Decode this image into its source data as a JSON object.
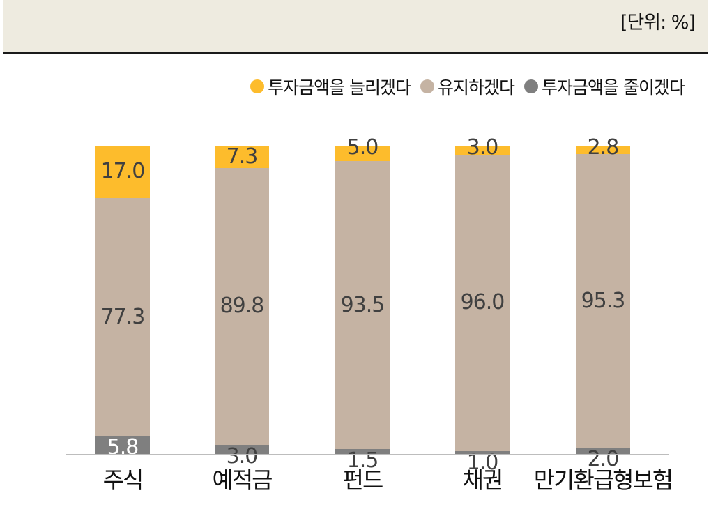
{
  "unit_label": "[단위: %]",
  "colors": {
    "increase": "#fdbc2c",
    "maintain": "#c5b3a3",
    "decrease": "#7f7f7f",
    "header_bg": "#eeebe0"
  },
  "legend": [
    {
      "label": "투자금액을 늘리겠다",
      "color": "#fdbc2c"
    },
    {
      "label": "유지하겠다",
      "color": "#c5b3a3"
    },
    {
      "label": "투자금액을 줄이겠다",
      "color": "#7f7f7f"
    }
  ],
  "chart_data": {
    "type": "bar",
    "stacked": true,
    "percent_stacked": true,
    "title": "",
    "unit": "%",
    "xlabel": "",
    "ylabel": "",
    "ylim": [
      0,
      100
    ],
    "grid": false,
    "legend_position": "top-right",
    "categories": [
      "주식",
      "예적금",
      "펀드",
      "채권",
      "만기환급형보험"
    ],
    "series": [
      {
        "name": "투자금액을 줄이겠다",
        "values": [
          5.8,
          3.0,
          1.5,
          1.0,
          2.0
        ]
      },
      {
        "name": "유지하겠다",
        "values": [
          77.3,
          89.8,
          93.5,
          96.0,
          95.3
        ]
      },
      {
        "name": "투자금액을 늘리겠다",
        "values": [
          17.0,
          7.3,
          5.0,
          3.0,
          2.8
        ]
      }
    ]
  }
}
